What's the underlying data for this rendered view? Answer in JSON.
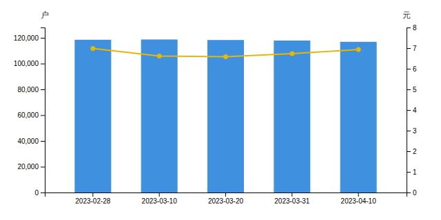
{
  "chart_data": {
    "type": "bar",
    "categories": [
      "2023-02-28",
      "2023-03-10",
      "2023-03-20",
      "2023-03-31",
      "2023-04-10"
    ],
    "ylabel": "户",
    "y2label": "元",
    "ylim": [
      0,
      128000
    ],
    "yticks": [
      0,
      {
        "value": 20000,
        "label": "20,000"
      },
      {
        "value": 40000,
        "label": "40,000"
      },
      {
        "value": 60000,
        "label": "60,000"
      },
      {
        "value": 80000,
        "label": "80,000"
      },
      {
        "value": 100000,
        "label": "100,000"
      },
      {
        "value": 120000,
        "label": "120,000"
      }
    ],
    "y2lim": [
      0,
      8
    ],
    "y2ticks": [
      0,
      1,
      2,
      3,
      4,
      5,
      6,
      7,
      8
    ],
    "grid": false,
    "series": [
      {
        "type": "bar",
        "color": "#4090e0",
        "values": [
          118500,
          118700,
          118300,
          117900,
          116900
        ]
      },
      {
        "type": "line",
        "axis": "y2",
        "color": "#e8b800",
        "marker": "circle",
        "values": [
          6.98,
          6.62,
          6.58,
          6.73,
          6.93
        ]
      }
    ]
  }
}
